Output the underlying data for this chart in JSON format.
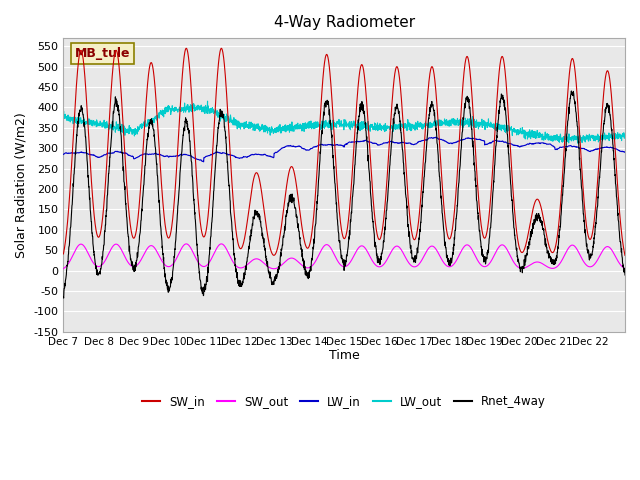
{
  "title": "4-Way Radiometer",
  "xlabel": "Time",
  "ylabel": "Solar Radiation (W/m2)",
  "ylim": [
    -150,
    570
  ],
  "yticks": [
    -150,
    -100,
    -50,
    0,
    50,
    100,
    150,
    200,
    250,
    300,
    350,
    400,
    450,
    500,
    550
  ],
  "x_tick_labels": [
    "Dec 7",
    "Dec 8",
    "Dec 9",
    "Dec 10",
    "Dec 11",
    "Dec 12",
    "Dec 13",
    "Dec 14",
    "Dec 15",
    "Dec 16",
    "Dec 17",
    "Dec 18",
    "Dec 19",
    "Dec 20",
    "Dec 21",
    "Dec 22"
  ],
  "station_label": "MB_tule",
  "colors": {
    "SW_in": "#cc0000",
    "SW_out": "#ff00ff",
    "LW_in": "#0000cc",
    "LW_out": "#00cccc",
    "Rnet_4way": "#000000"
  },
  "background_color": "#e8e8e8",
  "n_days": 16,
  "points_per_day": 144
}
